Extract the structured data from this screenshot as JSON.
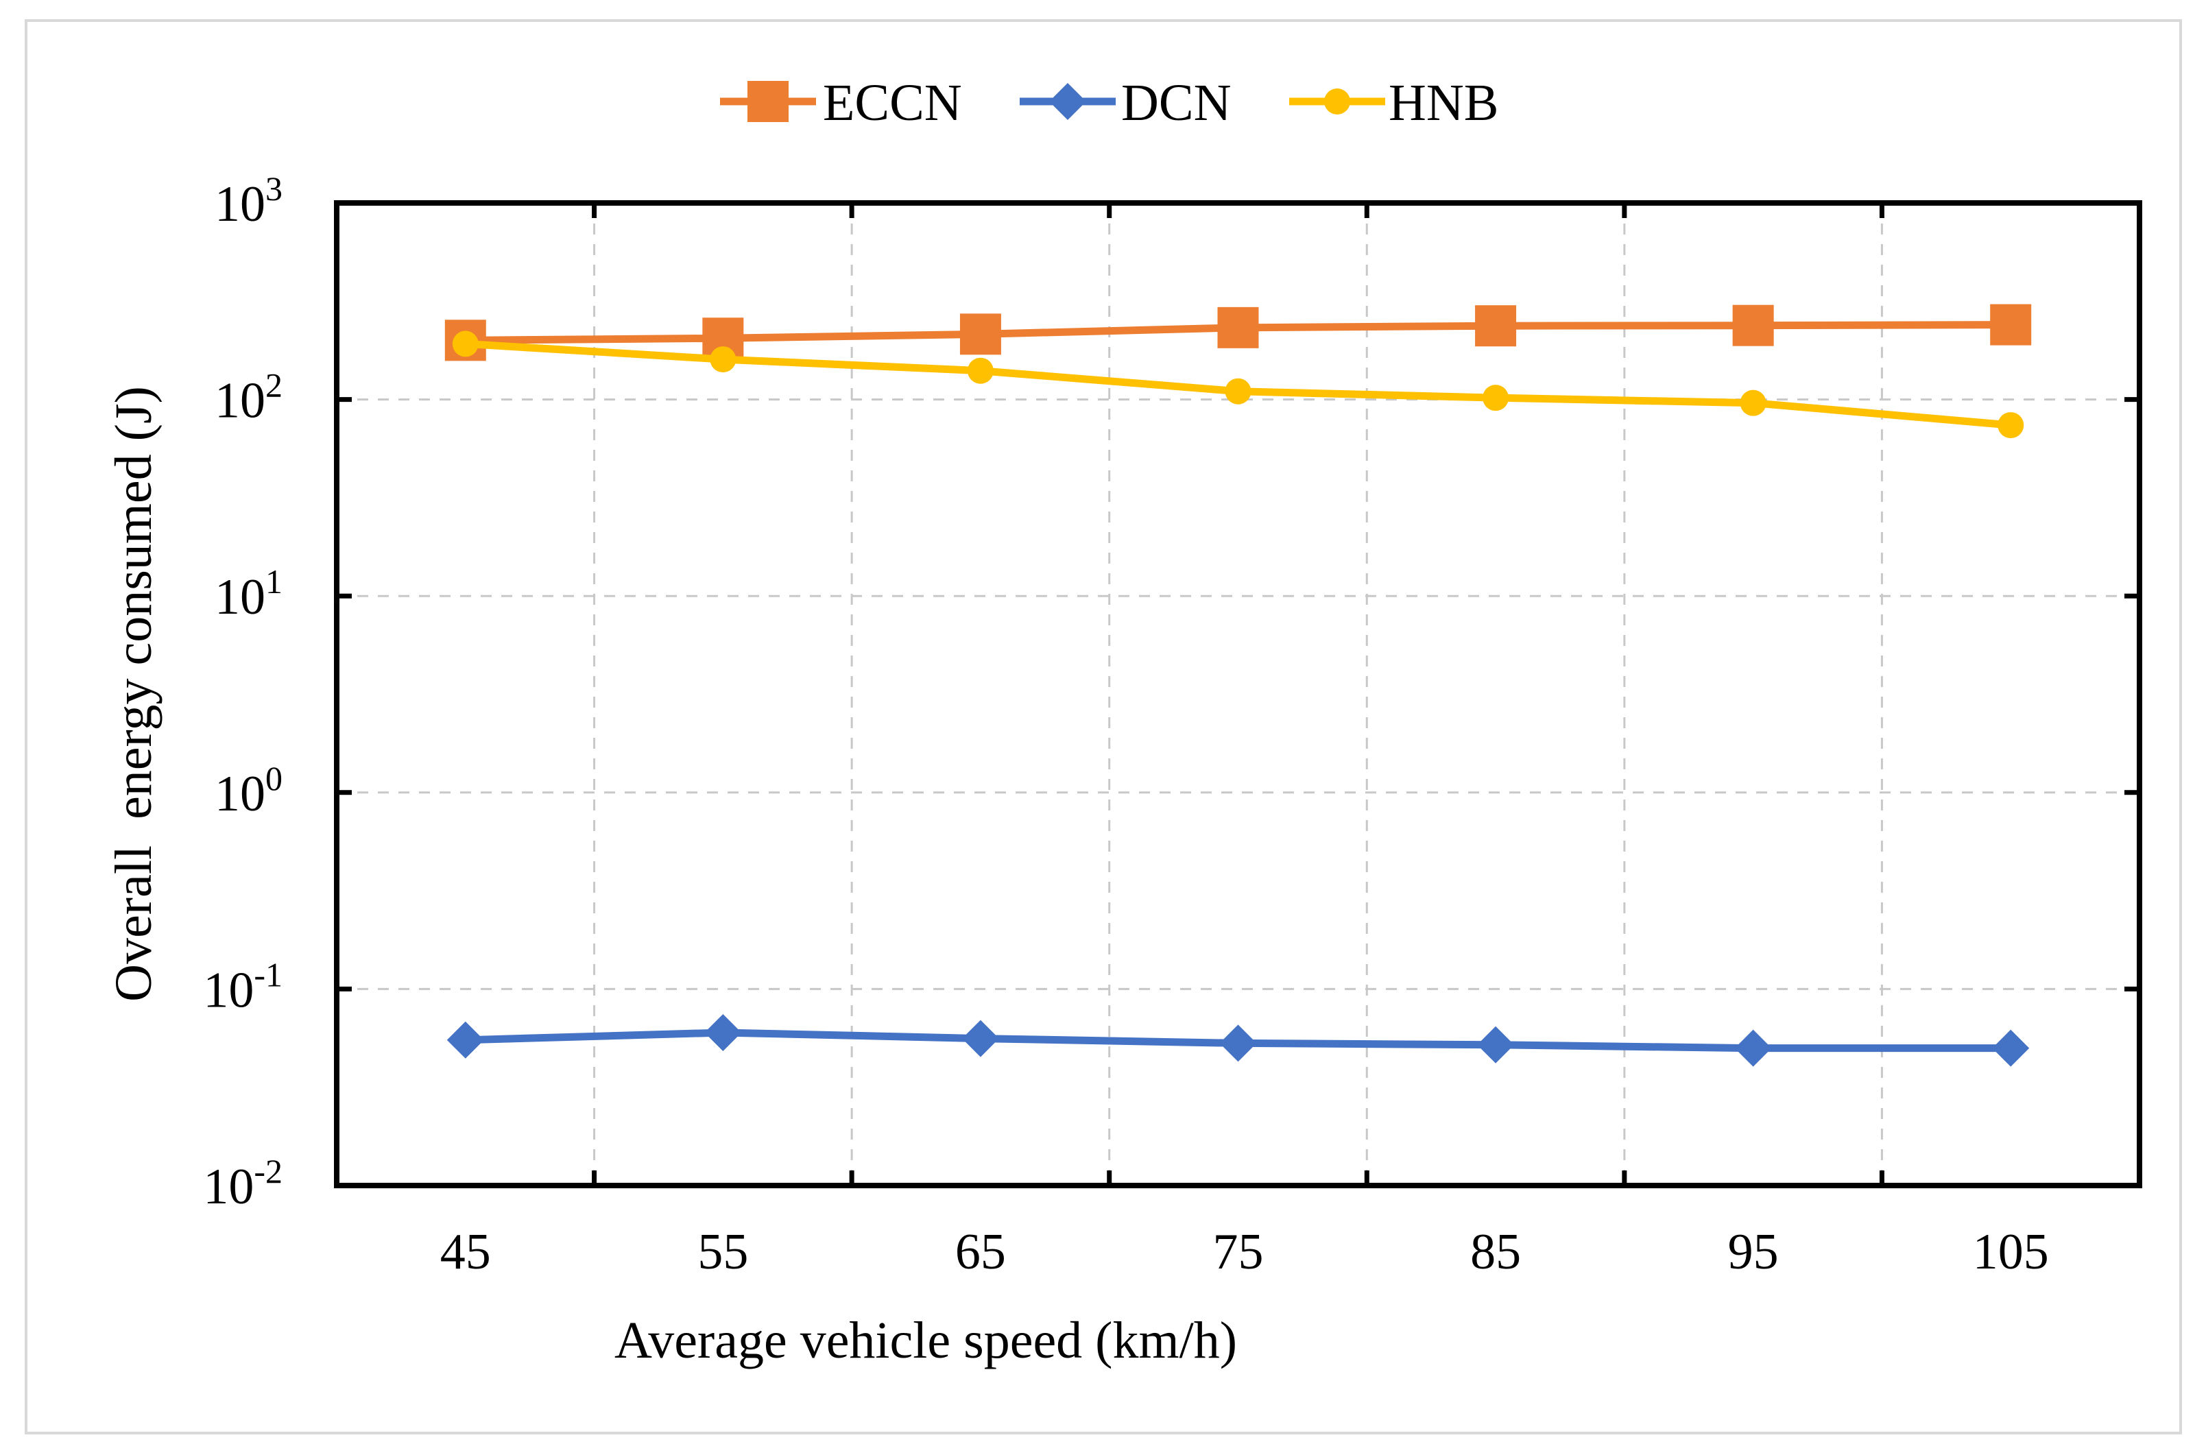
{
  "chart_data": {
    "type": "line",
    "title": "",
    "xlabel": "Average vehicle speed (km/h)",
    "ylabel": "Overall  energy consumed (J)",
    "yscale": "log",
    "ylim": [
      0.01,
      1000
    ],
    "grid": true,
    "legend_position": "top-center",
    "x": [
      45,
      55,
      65,
      75,
      85,
      95,
      105
    ],
    "x_tick_labels": [
      "45",
      "55",
      "65",
      "75",
      "85",
      "95",
      "105"
    ],
    "y_ticks": [
      {
        "value": 0.01,
        "base": "10",
        "exp": "-2"
      },
      {
        "value": 0.1,
        "base": "10",
        "exp": "-1"
      },
      {
        "value": 1,
        "base": "10",
        "exp": "0"
      },
      {
        "value": 10,
        "base": "10",
        "exp": "1"
      },
      {
        "value": 100,
        "base": "10",
        "exp": "2"
      },
      {
        "value": 1000,
        "base": "10",
        "exp": "3"
      }
    ],
    "series": [
      {
        "name": "ECCN",
        "color": "#ED7D31",
        "marker": "square",
        "values": [
          200,
          205,
          215,
          232,
          237,
          238,
          240
        ]
      },
      {
        "name": "DCN",
        "color": "#4472C4",
        "marker": "diamond",
        "values": [
          0.055,
          0.06,
          0.056,
          0.053,
          0.052,
          0.05,
          0.05
        ]
      },
      {
        "name": "HNB",
        "color": "#FFC000",
        "marker": "circle",
        "values": [
          192,
          160,
          140,
          110,
          102,
          96,
          74
        ]
      }
    ]
  }
}
